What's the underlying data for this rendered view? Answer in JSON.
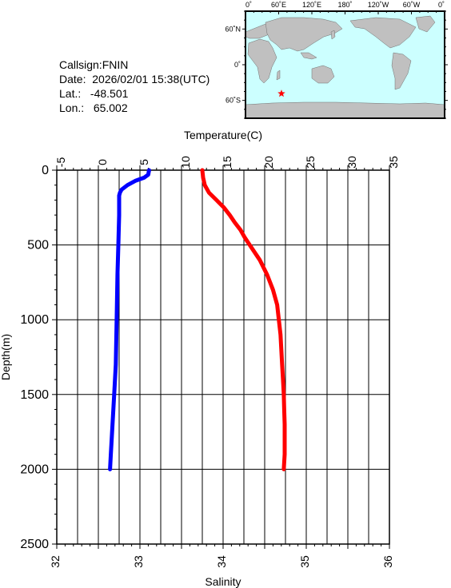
{
  "station": {
    "callsign_label": "Callsign:",
    "callsign": "FNIN",
    "date_label": "Date:",
    "date": "2026/02/01 15:38(UTC)",
    "lat_label": "Lat.:",
    "lat": "-48.501",
    "lon_label": "Lon.:",
    "lon": "65.002"
  },
  "map": {
    "lon_labels": [
      "0˚",
      "60˚E",
      "120˚E",
      "180˚",
      "120˚W",
      "60˚W",
      "0˚"
    ],
    "lat_labels": [
      "60˚N",
      "0˚",
      "60˚S"
    ],
    "marker": {
      "lon": 65.0,
      "lat": -48.5,
      "color": "#ff0000",
      "icon": "star-icon"
    },
    "ocean_color": "#ccffff",
    "land_color": "#c0c0c0"
  },
  "chart_data": {
    "type": "line",
    "title": "",
    "y": {
      "label": "Depth(m)",
      "lim": [
        0,
        2500
      ],
      "ticks": [
        0,
        500,
        1000,
        1500,
        2000,
        2500
      ],
      "inverted": true
    },
    "x_top": {
      "label": "Temperature(C)",
      "lim": [
        -5,
        35
      ],
      "ticks": [
        "-5",
        "0",
        "5",
        "10",
        "15",
        "20",
        "25",
        "30",
        "35"
      ]
    },
    "x_bottom": {
      "label": "Salinity",
      "lim": [
        32,
        36
      ],
      "ticks": [
        "32",
        "33",
        "34",
        "35",
        "36"
      ]
    },
    "grid": true,
    "series": [
      {
        "axis": "top",
        "color": "#ff0000",
        "depth": [
          0,
          50,
          100,
          150,
          200,
          250,
          300,
          350,
          400,
          450,
          500,
          600,
          700,
          800,
          900,
          1000,
          1100,
          1200,
          1300,
          1400,
          1500,
          1600,
          1700,
          1800,
          1900,
          2000
        ],
        "values": [
          12.5,
          12.6,
          12.8,
          13.3,
          14.2,
          15.1,
          15.8,
          16.4,
          17.1,
          17.6,
          18.2,
          19.4,
          20.3,
          21.0,
          21.5,
          21.7,
          21.9,
          22.0,
          22.1,
          22.2,
          22.3,
          22.35,
          22.4,
          22.4,
          22.4,
          22.3
        ]
      },
      {
        "axis": "bottom",
        "color": "#0000ff",
        "depth": [
          0,
          30,
          50,
          70,
          100,
          130,
          150,
          170,
          200,
          300,
          500,
          700,
          1000,
          1300,
          1500,
          1700,
          1900,
          2000
        ],
        "values": [
          33.11,
          33.1,
          33.05,
          32.95,
          32.85,
          32.78,
          32.76,
          32.75,
          32.75,
          32.75,
          32.74,
          32.73,
          32.72,
          32.71,
          32.69,
          32.67,
          32.65,
          32.64
        ]
      }
    ]
  }
}
